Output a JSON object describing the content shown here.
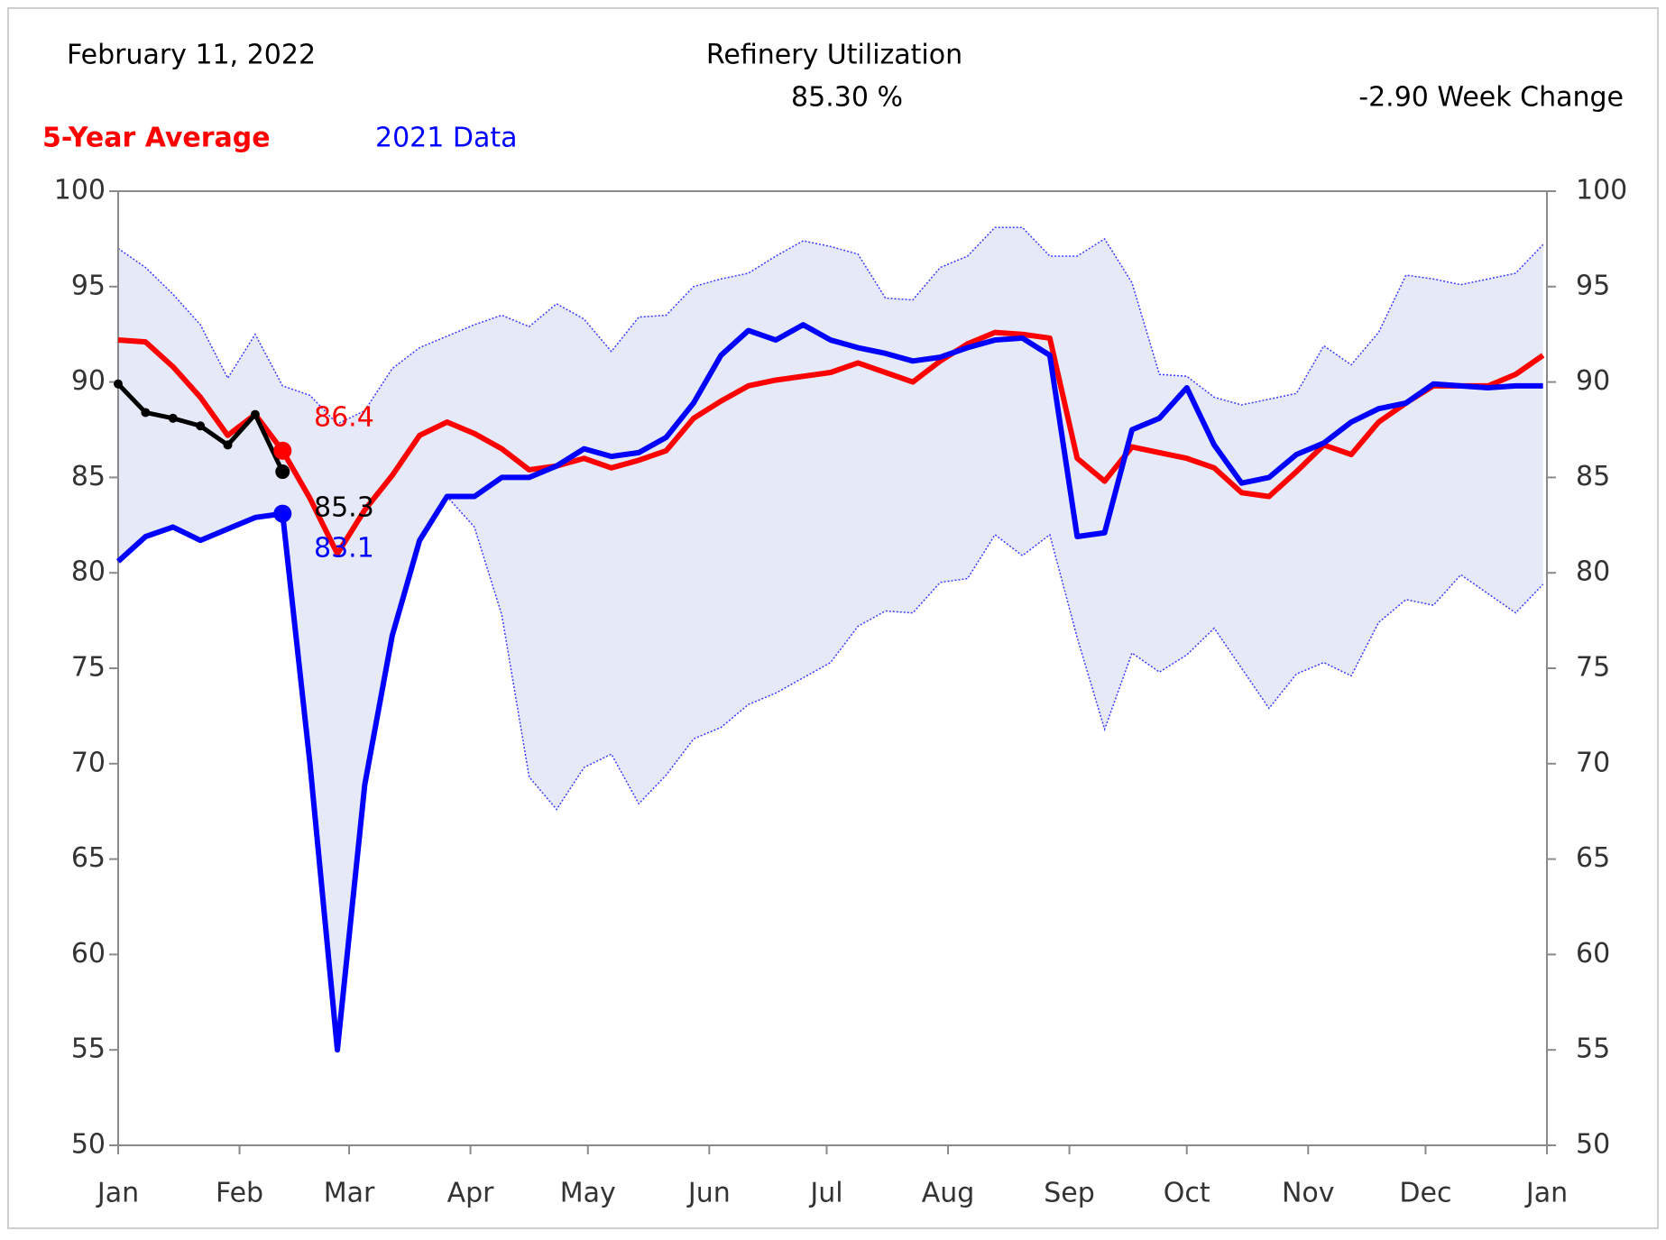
{
  "chart_data": {
    "type": "line",
    "date": "February 11, 2022",
    "title": "Refinery  Utilization",
    "subtitle": "85.30 %",
    "week_change": "-2.90 Week Change",
    "xlim": [
      0,
      365
    ],
    "xticks": [
      {
        "value": 0,
        "label": "Jan"
      },
      {
        "value": 31,
        "label": "Feb"
      },
      {
        "value": 59,
        "label": "Mar"
      },
      {
        "value": 90,
        "label": "Apr"
      },
      {
        "value": 120,
        "label": "May"
      },
      {
        "value": 151,
        "label": "Jun"
      },
      {
        "value": 181,
        "label": "Jul"
      },
      {
        "value": 212,
        "label": "Aug"
      },
      {
        "value": 243,
        "label": "Sep"
      },
      {
        "value": 273,
        "label": "Oct"
      },
      {
        "value": 304,
        "label": "Nov"
      },
      {
        "value": 334,
        "label": "Dec"
      },
      {
        "value": 365,
        "label": "Jan"
      }
    ],
    "ylim": [
      50,
      100
    ],
    "yticks": [
      50,
      55,
      60,
      65,
      70,
      75,
      80,
      85,
      90,
      95,
      100
    ],
    "x": [
      0,
      7,
      14,
      21,
      28,
      35,
      42,
      49,
      56,
      63,
      70,
      77,
      84,
      91,
      98,
      105,
      112,
      119,
      126,
      133,
      140,
      147,
      154,
      161,
      168,
      175,
      182,
      189,
      196,
      203,
      210,
      217,
      224,
      231,
      238,
      245,
      252,
      259,
      266,
      273,
      280,
      287,
      294,
      301,
      308,
      315,
      322,
      329,
      336,
      343,
      350,
      357,
      364
    ],
    "band": {
      "color": "#e6e9f7",
      "edge_color": "#3b3bff",
      "upper": [
        97.0,
        96.0,
        94.6,
        93.0,
        90.2,
        92.5,
        89.8,
        89.3,
        87.8,
        88.5,
        90.7,
        91.8,
        92.4,
        93.0,
        93.5,
        92.9,
        94.1,
        93.3,
        91.6,
        93.4,
        93.5,
        95.0,
        95.4,
        95.7,
        96.6,
        97.4,
        97.1,
        96.7,
        94.4,
        94.3,
        96.0,
        96.6,
        98.1,
        98.1,
        96.6,
        96.6,
        97.5,
        95.2,
        90.4,
        90.3,
        89.2,
        88.8,
        89.1,
        89.4,
        91.9,
        90.9,
        92.6,
        95.6,
        95.4,
        95.1,
        95.4,
        95.7,
        97.2
      ],
      "lower": [
        80.6,
        81.9,
        82.4,
        81.7,
        82.3,
        82.9,
        83.1,
        70.0,
        55.0,
        68.9,
        76.7,
        81.7,
        84.0,
        82.4,
        77.8,
        69.3,
        67.6,
        69.8,
        70.5,
        67.9,
        69.4,
        71.3,
        71.9,
        73.1,
        73.7,
        74.5,
        75.3,
        77.2,
        78.0,
        77.9,
        79.5,
        79.7,
        82.0,
        80.9,
        82.0,
        76.6,
        71.8,
        75.8,
        74.8,
        75.7,
        77.1,
        75.0,
        72.9,
        74.7,
        75.3,
        74.6,
        77.4,
        78.6,
        78.3,
        79.9,
        78.9,
        77.9,
        79.4
      ]
    },
    "series": [
      {
        "name": "5-Year Average",
        "color": "#ff0000",
        "values": [
          92.2,
          92.1,
          90.8,
          89.2,
          87.2,
          88.3,
          86.4,
          83.9,
          81.0,
          83.3,
          85.1,
          87.2,
          87.9,
          87.3,
          86.5,
          85.4,
          85.6,
          86.0,
          85.5,
          85.9,
          86.4,
          88.1,
          89.0,
          89.8,
          90.1,
          90.3,
          90.5,
          91.0,
          90.5,
          90.0,
          91.1,
          92.0,
          92.6,
          92.5,
          92.3,
          86.0,
          84.8,
          86.6,
          86.3,
          86.0,
          85.5,
          84.2,
          84.0,
          85.3,
          86.7,
          86.2,
          87.9,
          88.9,
          89.8,
          89.8,
          89.8,
          90.4,
          91.4
        ]
      },
      {
        "name": "2021 Data",
        "color": "#0000ff",
        "values": [
          80.6,
          81.9,
          82.4,
          81.7,
          82.3,
          82.9,
          83.1,
          70.0,
          55.0,
          68.9,
          76.7,
          81.7,
          84.0,
          84.0,
          85.0,
          85.0,
          85.6,
          86.5,
          86.1,
          86.3,
          87.1,
          88.9,
          91.4,
          92.7,
          92.2,
          93.0,
          92.2,
          91.8,
          91.5,
          91.1,
          91.3,
          91.8,
          92.2,
          92.3,
          91.4,
          81.9,
          82.1,
          87.5,
          88.1,
          89.7,
          86.7,
          84.7,
          85.0,
          86.2,
          86.8,
          87.9,
          88.6,
          88.9,
          89.9,
          89.8,
          89.7,
          89.8,
          89.8
        ]
      }
    ],
    "current": {
      "color": "#000000",
      "values": [
        89.9,
        88.4,
        88.1,
        87.7,
        86.7,
        88.3,
        85.3
      ]
    },
    "annotations": [
      {
        "text": "86.4",
        "color": "#ff0000"
      },
      {
        "text": "85.3",
        "color": "#000000"
      },
      {
        "text": "83.1",
        "color": "#0000ff"
      }
    ]
  }
}
